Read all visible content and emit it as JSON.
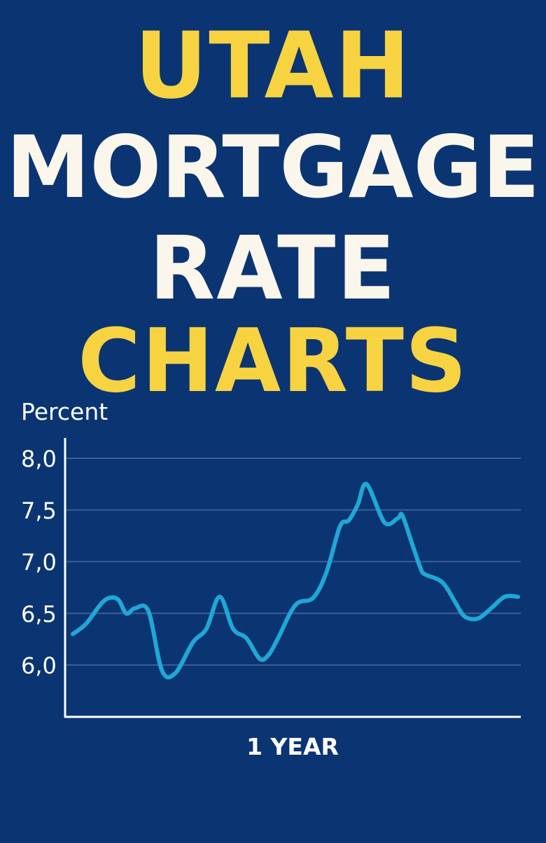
{
  "header": {
    "title_line1": "UTAH",
    "title_line2": "MORTGAGE",
    "title_line3": "RATE",
    "title_line4": "CHARTS"
  },
  "colors": {
    "background": "#0b3572",
    "accent_yellow": "#f7d342",
    "title_white": "#fbf6ec",
    "line": "#1fa7d6",
    "grid": "#3b5e95"
  },
  "chart_data": {
    "type": "line",
    "ylabel": "Percent",
    "xlabel": "1 YEAR",
    "y_ticks": [
      "6,0",
      "6,5",
      "7,0",
      "7,5",
      "8,0"
    ],
    "y_tick_values": [
      6.0,
      6.5,
      7.0,
      7.5,
      8.0
    ],
    "ylim": [
      5.5,
      8.2
    ],
    "xlim": [
      0,
      1
    ],
    "grid": true,
    "series": [
      {
        "x": [
          0.0,
          0.03,
          0.07,
          0.1,
          0.12,
          0.14,
          0.17,
          0.2,
          0.23,
          0.27,
          0.3,
          0.33,
          0.36,
          0.39,
          0.42,
          0.44,
          0.46,
          0.5,
          0.54,
          0.57,
          0.6,
          0.62,
          0.64,
          0.66,
          0.7,
          0.73,
          0.74,
          0.76,
          0.78,
          0.79,
          0.83,
          0.86,
          0.88,
          0.91,
          0.94,
          0.97,
          1.0
        ],
        "values": [
          6.3,
          6.4,
          6.62,
          6.64,
          6.5,
          6.55,
          6.52,
          5.95,
          5.92,
          6.22,
          6.35,
          6.66,
          6.35,
          6.26,
          6.06,
          6.1,
          6.25,
          6.58,
          6.65,
          6.9,
          7.34,
          7.4,
          7.55,
          7.75,
          7.38,
          7.42,
          7.45,
          7.2,
          6.95,
          6.88,
          6.8,
          6.6,
          6.47,
          6.45,
          6.55,
          6.66,
          6.66
        ]
      }
    ]
  }
}
